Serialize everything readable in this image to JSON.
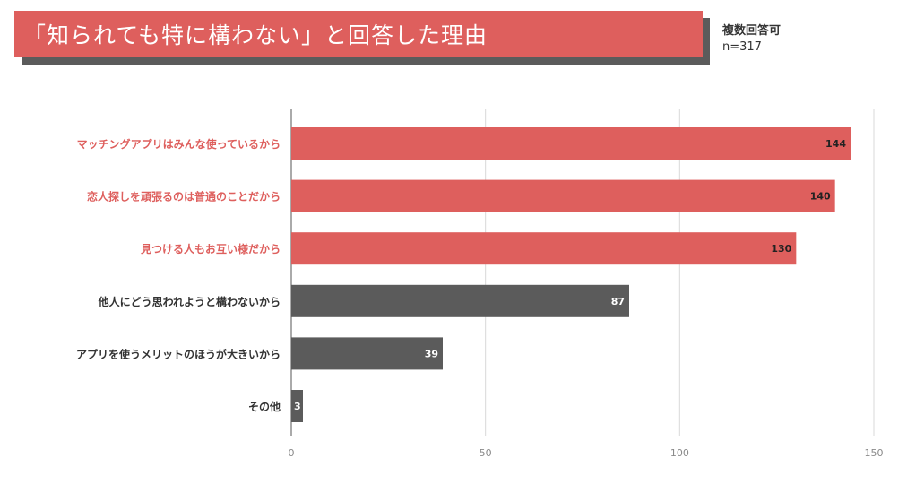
{
  "header": {
    "title": "「知られても特に構わない」と回答した理由",
    "note_line1": "複数回答可",
    "note_line2": "n=317"
  },
  "colors": {
    "highlight": "#de5f5d",
    "default": "#5b5b5b",
    "grid": "#d9d9d9",
    "axis": "#555555"
  },
  "chart_data": {
    "type": "bar",
    "orientation": "horizontal",
    "categories": [
      "マッチングアプリはみんな使っているから",
      "恋人探しを頑張るのは普通のことだから",
      "見つける人もお互い様だから",
      "他人にどう思われようと構わないから",
      "アプリを使うメリットのほうが大きいから",
      "その他"
    ],
    "values": [
      144,
      140,
      130,
      87,
      39,
      3
    ],
    "highlighted": [
      true,
      true,
      true,
      false,
      false,
      false
    ],
    "xlim": [
      0,
      150
    ],
    "xticks": [
      0,
      50,
      100,
      150
    ],
    "xlabel": "",
    "ylabel": "",
    "grid": true,
    "legend": "none"
  }
}
